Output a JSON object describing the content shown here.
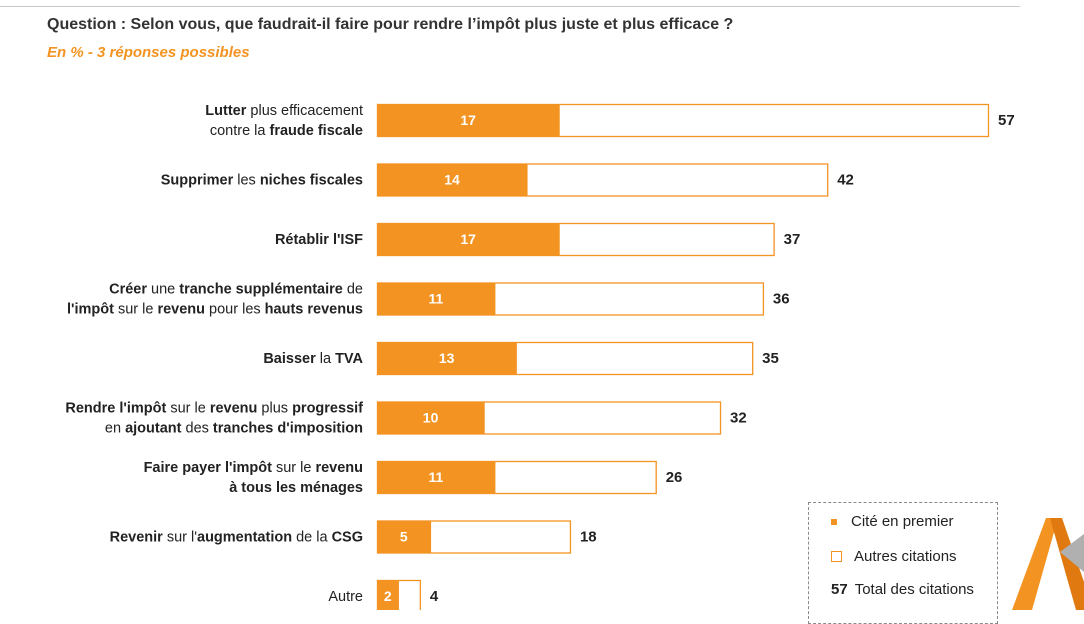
{
  "header": {
    "question": "Question : Selon vous, que faudrait-il faire pour rendre l’impôt plus juste et plus efficace ?",
    "subtitle": "En % - 3 réponses possibles"
  },
  "legend": {
    "first_label": "Cité en premier",
    "other_label": "Autres citations",
    "total_value": "57",
    "total_label": "Total des citations"
  },
  "colors": {
    "accent": "#f39322",
    "text": "#222222"
  },
  "chart_data": {
    "type": "bar",
    "orientation": "horizontal",
    "title": "Question : Selon vous, que faudrait-il faire pour rendre l’impôt plus juste et plus efficace ?",
    "xlim": [
      0,
      57
    ],
    "categories": [
      [
        [
          {
            "t": "Lutter",
            "b": true
          },
          {
            "t": " plus efficacement",
            "b": false
          }
        ],
        [
          {
            "t": "contre la ",
            "b": false
          },
          {
            "t": "fraude fiscale",
            "b": true
          }
        ]
      ],
      [
        [
          {
            "t": "Supprimer",
            "b": true
          },
          {
            "t": " les ",
            "b": false
          },
          {
            "t": "niches fiscales",
            "b": true
          }
        ]
      ],
      [
        [
          {
            "t": "Rétablir l'ISF",
            "b": true
          }
        ]
      ],
      [
        [
          {
            "t": "Créer",
            "b": true
          },
          {
            "t": " une ",
            "b": false
          },
          {
            "t": "tranche supplémentaire",
            "b": true
          },
          {
            "t": " de",
            "b": false
          }
        ],
        [
          {
            "t": "l'impôt",
            "b": true
          },
          {
            "t": " sur le ",
            "b": false
          },
          {
            "t": "revenu",
            "b": true
          },
          {
            "t": " pour les ",
            "b": false
          },
          {
            "t": "hauts revenus",
            "b": true
          }
        ]
      ],
      [
        [
          {
            "t": "Baisser",
            "b": true
          },
          {
            "t": " la ",
            "b": false
          },
          {
            "t": "TVA",
            "b": true
          }
        ]
      ],
      [
        [
          {
            "t": "Rendre l'impôt",
            "b": true
          },
          {
            "t": " sur le ",
            "b": false
          },
          {
            "t": "revenu",
            "b": true
          },
          {
            "t": " plus ",
            "b": false
          },
          {
            "t": "progressif",
            "b": true
          }
        ],
        [
          {
            "t": "en ",
            "b": false
          },
          {
            "t": "ajoutant",
            "b": true
          },
          {
            "t": " des ",
            "b": false
          },
          {
            "t": "tranches d'imposition",
            "b": true
          }
        ]
      ],
      [
        [
          {
            "t": "Faire payer l'impôt",
            "b": true
          },
          {
            "t": " sur le ",
            "b": false
          },
          {
            "t": "revenu",
            "b": true
          }
        ],
        [
          {
            "t": "à tous les ménages",
            "b": true
          }
        ]
      ],
      [
        [
          {
            "t": "Revenir",
            "b": true
          },
          {
            "t": " sur l'",
            "b": false
          },
          {
            "t": "augmentation",
            "b": true
          },
          {
            "t": " de la ",
            "b": false
          },
          {
            "t": "CSG",
            "b": true
          }
        ]
      ],
      [
        [
          {
            "t": "Autre",
            "b": false
          }
        ]
      ]
    ],
    "series": [
      {
        "name": "Cité en premier",
        "values": [
          17,
          14,
          17,
          11,
          13,
          10,
          11,
          5,
          2
        ]
      },
      {
        "name": "Total des citations",
        "values": [
          57,
          42,
          37,
          36,
          35,
          32,
          26,
          18,
          4
        ]
      }
    ]
  }
}
